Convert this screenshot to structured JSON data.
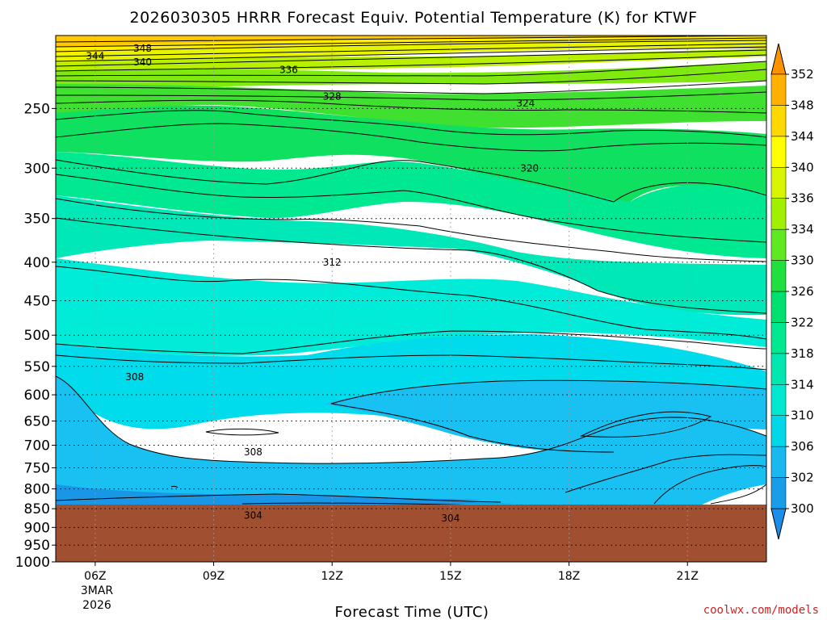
{
  "chart_data": {
    "type": "heatmap",
    "title": "2026030305 HRRR Forecast Equiv. Potential Temperature (K) for KTWF",
    "xlabel": "Forecast Time (UTC)",
    "ylabel": "",
    "credit": "coolwx.com/models",
    "x_ticks": [
      "06Z",
      "09Z",
      "12Z",
      "15Z",
      "18Z",
      "21Z"
    ],
    "x_date_line1": "3MAR",
    "x_date_line2": "2026",
    "x_range_hours_utc": [
      5,
      23
    ],
    "y_ticks": [
      250,
      300,
      350,
      400,
      450,
      500,
      550,
      600,
      650,
      700,
      750,
      800,
      850,
      900,
      950,
      1000
    ],
    "y_range_hPa": [
      1000,
      200
    ],
    "y_scale": "log-pressure",
    "ground_level_hPa": 880,
    "grid": true,
    "colorbar": {
      "ticks": [
        300,
        302,
        306,
        310,
        314,
        318,
        322,
        326,
        330,
        334,
        336,
        340,
        344,
        348,
        352
      ],
      "colors": [
        "#1a8ee8",
        "#199de8",
        "#19b8f0",
        "#00d7e8",
        "#00e8d0",
        "#00e8b0",
        "#00e890",
        "#00e070",
        "#20e040",
        "#60e820",
        "#a0f000",
        "#d8f400",
        "#ffff00",
        "#ffd800",
        "#ffb000",
        "#ff9200"
      ]
    },
    "contour_labels": [
      {
        "value": "348",
        "hour": 7.2,
        "p": 208
      },
      {
        "value": "344",
        "hour": 6.0,
        "p": 213
      },
      {
        "value": "340",
        "hour": 7.2,
        "p": 217
      },
      {
        "value": "336",
        "hour": 10.9,
        "p": 222
      },
      {
        "value": "328",
        "hour": 12.0,
        "p": 241
      },
      {
        "value": "324",
        "hour": 16.9,
        "p": 246
      },
      {
        "value": "320",
        "hour": 17.0,
        "p": 300
      },
      {
        "value": "312",
        "hour": 12.0,
        "p": 400
      },
      {
        "value": "308",
        "hour": 7.0,
        "p": 568
      },
      {
        "value": "308",
        "hour": 10.0,
        "p": 715
      },
      {
        "value": "304",
        "hour": 10.0,
        "p": 868
      },
      {
        "value": "304",
        "hour": 15.0,
        "p": 875
      }
    ]
  }
}
